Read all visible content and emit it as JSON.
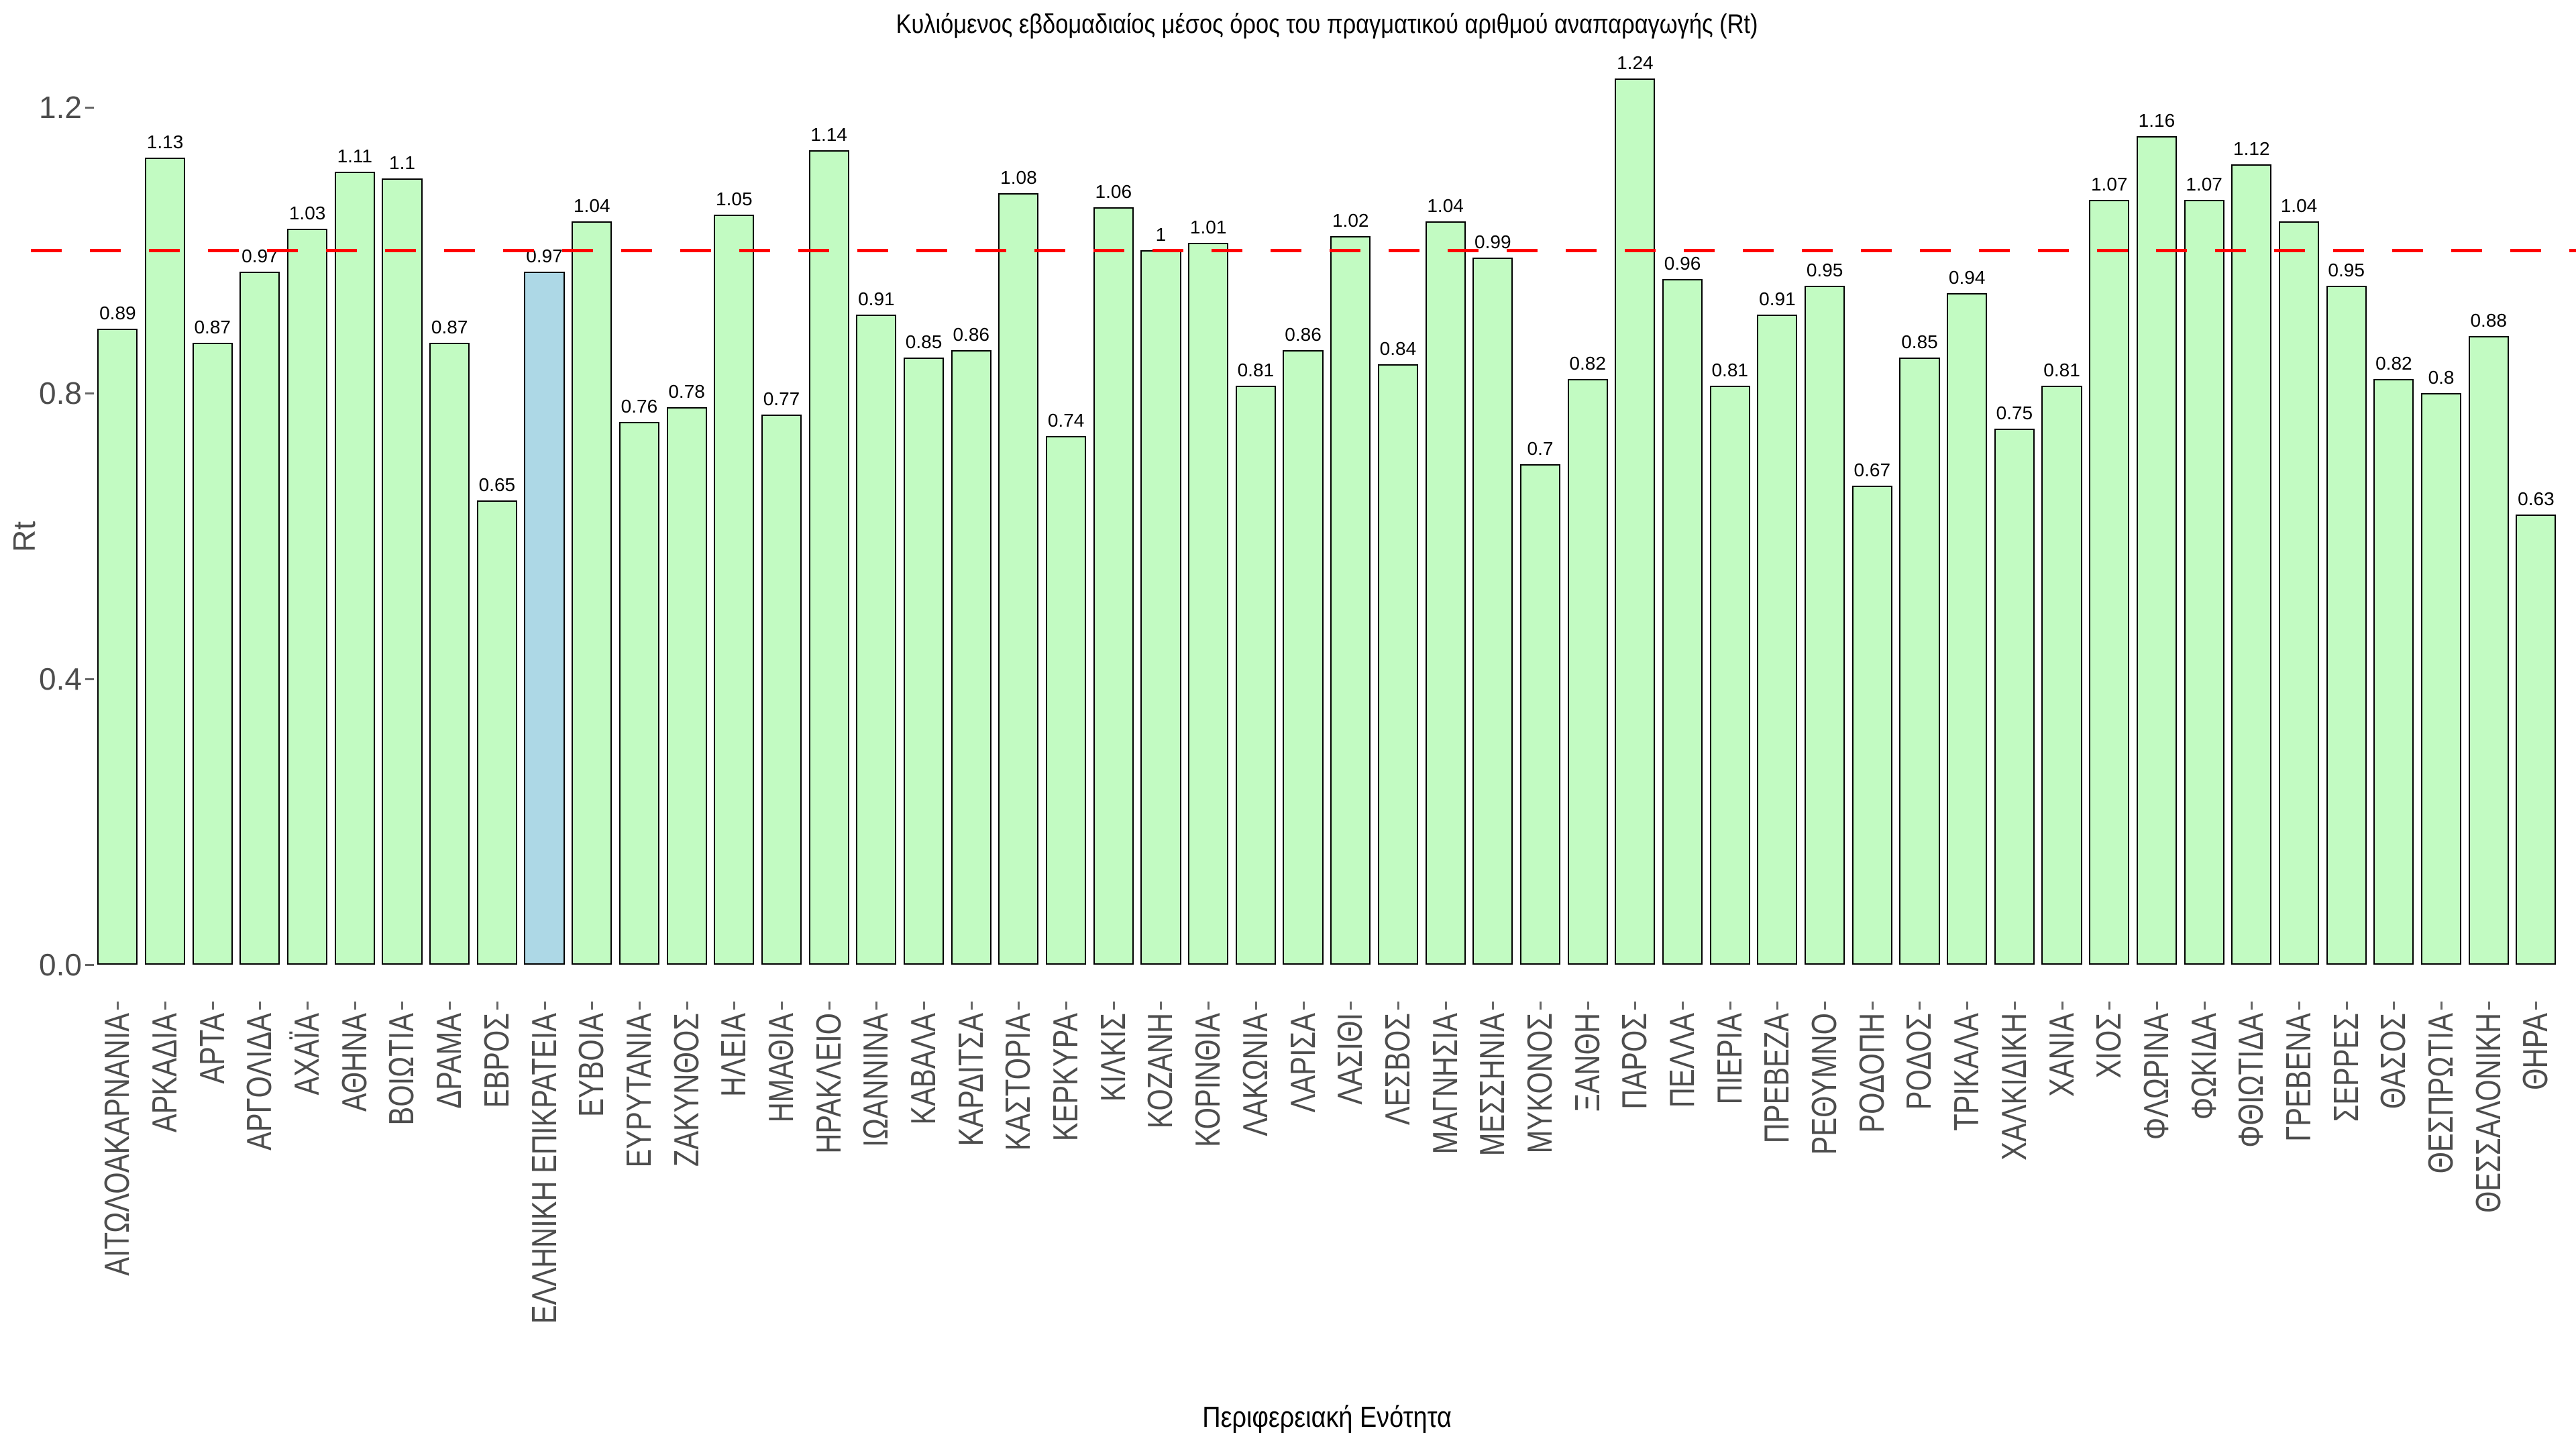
{
  "title": "Κυλιόμενος εβδομαδιαίος μέσος όρος του πραγματικού αριθμού αναπαραγωγής (Rt)",
  "y_axis": {
    "label": "Rt",
    "ticks": [
      "0.0",
      "0.4",
      "0.8",
      "1.2"
    ]
  },
  "x_axis": {
    "label": "Περιφερειακή Ενότητα"
  },
  "reference_line": {
    "value": 1.0,
    "color": "#ff0000",
    "style": "dashed"
  },
  "colors": {
    "bar_fill": "#c2fbc2",
    "bar_highlight_fill": "#add8e6",
    "bar_border": "#000000",
    "tick_text": "#4d4d4d",
    "reference_line": "#ff0000",
    "background": "#ffffff"
  },
  "chart_data": {
    "type": "bar",
    "title": "Κυλιόμενος εβδομαδιαίος μέσος όρος του πραγματικού αριθμού αναπαραγωγής (Rt)",
    "xlabel": "Περιφερειακή Ενότητα",
    "ylabel": "Rt",
    "ylim": [
      0,
      1.3
    ],
    "yticks": [
      0.0,
      0.4,
      0.8,
      1.2
    ],
    "grid": false,
    "legend": "none",
    "reference_line_y": 1.0,
    "highlight_category": "ΕΛΛΗΝΙΚΗ ΕΠΙΚΡΑΤΕΙΑ",
    "bar_value_labels_shown": true,
    "categories": [
      "ΑΙΤΩΛΟΑΚΑΡΝΑΝΙΑ",
      "ΑΡΚΑΔΙΑ",
      "ΑΡΤΑ",
      "ΑΡΓΟΛΙΔΑ",
      "ΑΧΑΪΑ",
      "ΑΘΗΝΑ",
      "ΒΟΙΩΤΙΑ",
      "ΔΡΑΜΑ",
      "ΕΒΡΟΣ",
      "ΕΛΛΗΝΙΚΗ ΕΠΙΚΡΑΤΕΙΑ",
      "ΕΥΒΟΙΑ",
      "ΕΥΡΥΤΑΝΙΑ",
      "ΖΑΚΥΝΘΟΣ",
      "ΗΛΕΙΑ",
      "ΗΜΑΘΙΑ",
      "ΗΡΑΚΛΕΙΟ",
      "ΙΩΑΝΝΙΝΑ",
      "ΚΑΒΑΛΑ",
      "ΚΑΡΔΙΤΣΑ",
      "ΚΑΣΤΟΡΙΑ",
      "ΚΕΡΚΥΡΑ",
      "ΚΙΛΚΙΣ",
      "ΚΟΖΑΝΗ",
      "ΚΟΡΙΝΘΙΑ",
      "ΛΑΚΩΝΙΑ",
      "ΛΑΡΙΣΑ",
      "ΛΑΣΙΘΙ",
      "ΛΕΣΒΟΣ",
      "ΜΑΓΝΗΣΙΑ",
      "ΜΕΣΣΗΝΙΑ",
      "ΜΥΚΟΝΟΣ",
      "ΞΑΝΘΗ",
      "ΠΑΡΟΣ",
      "ΠΕΛΛΑ",
      "ΠΙΕΡΙΑ",
      "ΠΡΕΒΕΖΑ",
      "ΡΕΘΥΜΝΟ",
      "ΡΟΔΟΠΗ",
      "ΡΟΔΟΣ",
      "ΤΡΙΚΑΛΑ",
      "ΧΑΛΚΙΔΙΚΗ",
      "ΧΑΝΙΑ",
      "ΧΙΟΣ",
      "ΦΛΩΡΙΝΑ",
      "ΦΩΚΙΔΑ",
      "ΦΘΙΩΤΙΔΑ",
      "ΓΡΕΒΕΝΑ",
      "ΣΕΡΡΕΣ",
      "ΘΑΣΟΣ",
      "ΘΕΣΠΡΩΤΙΑ",
      "ΘΕΣΣΑΛΟΝΙΚΗ",
      "ΘΗΡΑ"
    ],
    "values": [
      0.89,
      1.13,
      0.87,
      0.97,
      1.03,
      1.11,
      1.1,
      0.87,
      0.65,
      0.97,
      1.04,
      0.76,
      0.78,
      1.05,
      0.77,
      1.14,
      0.91,
      0.85,
      0.86,
      1.08,
      0.74,
      1.06,
      1,
      1.01,
      0.81,
      0.86,
      1.02,
      0.84,
      1.04,
      0.99,
      0.7,
      0.82,
      1.24,
      0.96,
      0.81,
      0.91,
      0.95,
      0.67,
      0.85,
      0.94,
      0.75,
      0.81,
      1.07,
      1.16,
      1.07,
      1.12,
      1.04,
      0.95,
      0.82,
      0.8,
      0.88,
      0.63
    ]
  }
}
